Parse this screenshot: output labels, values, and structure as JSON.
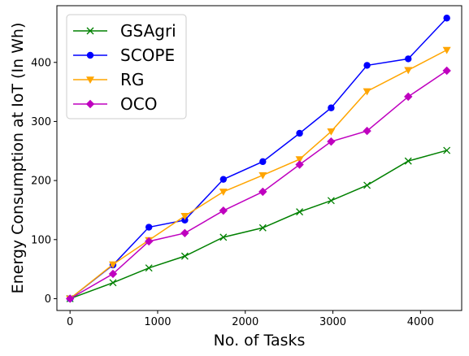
{
  "chart_data": {
    "type": "line",
    "xlabel": "No. of Tasks",
    "ylabel": "Energy Consumption at IoT (In Wh)",
    "xlim": [
      -150,
      4470
    ],
    "ylim": [
      -20,
      496
    ],
    "xticks": [
      0,
      1000,
      2000,
      3000,
      4000
    ],
    "yticks": [
      0,
      100,
      200,
      300,
      400
    ],
    "grid": false,
    "legend_position": "top-left",
    "x": [
      0,
      490,
      900,
      1310,
      1750,
      2200,
      2620,
      2980,
      3390,
      3860,
      4300
    ],
    "series": [
      {
        "name": "GSAgri",
        "color": "#008000",
        "marker": "x",
        "values": [
          0,
          27,
          52,
          72,
          104,
          120,
          147,
          166,
          192,
          233,
          251
        ]
      },
      {
        "name": "SCOPE",
        "color": "#0000ff",
        "marker": "circle",
        "values": [
          0,
          57,
          121,
          133,
          202,
          232,
          280,
          323,
          395,
          406,
          475
        ]
      },
      {
        "name": "RG",
        "color": "#ffa500",
        "marker": "triangle-down",
        "values": [
          0,
          58,
          99,
          140,
          181,
          209,
          236,
          283,
          351,
          387,
          421
        ]
      },
      {
        "name": "OCO",
        "color": "#bf00bf",
        "marker": "diamond",
        "values": [
          0,
          42,
          97,
          111,
          149,
          181,
          227,
          266,
          284,
          342,
          386
        ]
      }
    ]
  }
}
